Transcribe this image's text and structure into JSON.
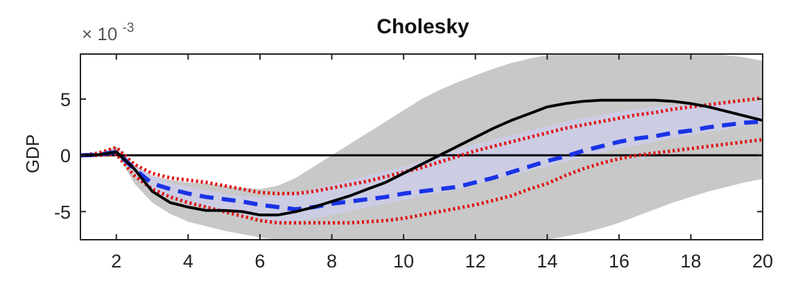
{
  "chart_data": {
    "type": "line",
    "title": "Cholesky",
    "ylabel": "GDP",
    "scale_note": "× 10",
    "scale_exponent": "-3",
    "xlim": [
      1,
      20
    ],
    "ylim": [
      -7.5,
      9
    ],
    "xticks": [
      2,
      4,
      6,
      8,
      10,
      12,
      14,
      16,
      18,
      20
    ],
    "yticks": [
      -5,
      0,
      5
    ],
    "x": [
      1,
      1.5,
      2,
      2.5,
      3,
      3.5,
      4,
      4.5,
      5,
      5.5,
      6,
      6.5,
      7,
      7.5,
      8,
      8.5,
      9,
      9.5,
      10,
      10.5,
      11,
      11.5,
      12,
      12.5,
      13,
      13.5,
      14,
      14.5,
      15,
      15.5,
      16,
      16.5,
      17,
      17.5,
      18,
      18.5,
      19,
      19.5,
      20
    ],
    "zero_line": 0,
    "bands": [
      {
        "color": "#c8c8c8",
        "lower": [
          0,
          0,
          0.3,
          -2.5,
          -4.2,
          -5.2,
          -5.9,
          -6.3,
          -6.7,
          -7.0,
          -7.3,
          -7.5,
          -7.5,
          -7.5,
          -7.5,
          -7.5,
          -7.5,
          -7.5,
          -7.5,
          -7.5,
          -7.5,
          -7.5,
          -7.5,
          -7.5,
          -7.5,
          -7.5,
          -7.5,
          -7.2,
          -6.9,
          -6.5,
          -6.0,
          -5.4,
          -4.8,
          -4.2,
          -3.7,
          -3.2,
          -2.8,
          -2.4,
          -2.1
        ],
        "upper": [
          0,
          0.2,
          0.8,
          -0.8,
          -1.8,
          -2.2,
          -2.4,
          -2.5,
          -2.7,
          -2.9,
          -3.0,
          -2.7,
          -2.0,
          -1.0,
          0,
          1.0,
          2.0,
          3.0,
          4.0,
          5.0,
          5.8,
          6.5,
          7.1,
          7.7,
          8.2,
          8.6,
          8.9,
          9.0,
          9.0,
          9.0,
          9.0,
          9.0,
          9.0,
          9.0,
          9.0,
          9.0,
          8.9,
          8.7,
          8.4
        ]
      },
      {
        "color": "#cccce8",
        "lower": [
          0,
          0,
          0.2,
          -1.6,
          -3.2,
          -3.8,
          -4.2,
          -4.6,
          -4.9,
          -5.3,
          -5.6,
          -5.9,
          -5.9,
          -5.6,
          -5.3,
          -5.0,
          -4.6,
          -4.3,
          -4.0,
          -3.6,
          -3.3,
          -3.0,
          -2.6,
          -2.2,
          -1.8,
          -1.4,
          -1.0,
          -0.6,
          -0.2,
          0.2,
          0.6,
          0.9,
          1.2,
          1.5,
          1.8,
          2.1,
          2.3,
          2.6,
          2.9
        ],
        "upper": [
          0,
          0.2,
          0.6,
          -0.9,
          -1.8,
          -2.4,
          -2.8,
          -3.1,
          -3.4,
          -3.6,
          -3.7,
          -3.6,
          -3.4,
          -3.0,
          -2.6,
          -2.2,
          -1.8,
          -1.4,
          -1.0,
          -0.5,
          0,
          0.5,
          1.0,
          1.4,
          1.8,
          2.2,
          2.6,
          3.0,
          3.3,
          3.6,
          3.9,
          4.1,
          4.3,
          4.4,
          4.5,
          4.6,
          4.7,
          4.7,
          4.8
        ]
      }
    ],
    "series": [
      {
        "style": "solid",
        "color": "#000000",
        "values": [
          0,
          0.05,
          0.3,
          -1.2,
          -3.2,
          -4.2,
          -4.6,
          -4.9,
          -4.9,
          -5.0,
          -5.3,
          -5.3,
          -5.0,
          -4.6,
          -4.1,
          -3.6,
          -3.0,
          -2.4,
          -1.6,
          -0.8,
          0,
          0.8,
          1.6,
          2.4,
          3.1,
          3.7,
          4.3,
          4.6,
          4.8,
          4.9,
          4.9,
          4.9,
          4.9,
          4.8,
          4.6,
          4.3,
          3.9,
          3.5,
          3.1
        ]
      },
      {
        "style": "dashed",
        "color": "#1a33e6",
        "values": [
          0,
          0.05,
          0.3,
          -1.2,
          -2.5,
          -3.0,
          -3.4,
          -3.7,
          -3.9,
          -4.1,
          -4.4,
          -4.6,
          -4.8,
          -4.6,
          -4.3,
          -4.1,
          -3.9,
          -3.7,
          -3.4,
          -3.2,
          -3.0,
          -2.8,
          -2.4,
          -2.0,
          -1.5,
          -1.0,
          -0.5,
          -0.1,
          0.4,
          0.8,
          1.2,
          1.5,
          1.7,
          2.0,
          2.2,
          2.5,
          2.7,
          2.9,
          3.0
        ]
      },
      {
        "style": "dotted",
        "color": "#e01010",
        "values": [
          0,
          0.2,
          0.7,
          -0.8,
          -1.6,
          -2.0,
          -2.2,
          -2.4,
          -2.7,
          -3.0,
          -3.3,
          -3.4,
          -3.4,
          -3.2,
          -2.9,
          -2.6,
          -2.3,
          -1.9,
          -1.5,
          -1.1,
          -0.6,
          -0.1,
          0.4,
          0.8,
          1.2,
          1.6,
          2.0,
          2.4,
          2.7,
          3.0,
          3.3,
          3.6,
          3.8,
          4.1,
          4.3,
          4.5,
          4.7,
          4.9,
          5.1
        ]
      },
      {
        "style": "dotted",
        "color": "#e01010",
        "values": [
          0,
          0.0,
          0.1,
          -1.8,
          -3.0,
          -3.7,
          -4.2,
          -4.6,
          -5.0,
          -5.4,
          -5.8,
          -6.0,
          -6.0,
          -6.0,
          -6.0,
          -6.0,
          -5.9,
          -5.8,
          -5.6,
          -5.3,
          -5.0,
          -4.7,
          -4.4,
          -4.0,
          -3.6,
          -3.0,
          -2.5,
          -1.8,
          -1.2,
          -0.7,
          -0.3,
          0.0,
          0.2,
          0.4,
          0.6,
          0.8,
          1.0,
          1.2,
          1.4
        ]
      }
    ]
  }
}
